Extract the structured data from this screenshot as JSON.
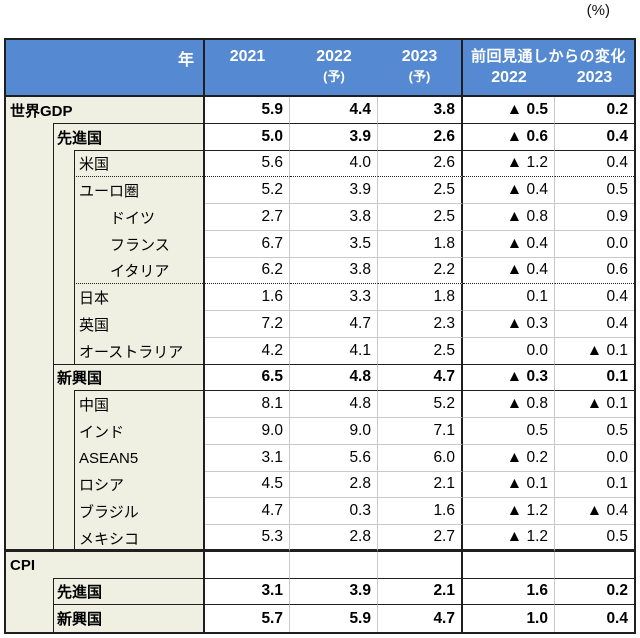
{
  "page": {
    "unit_label": "(%)"
  },
  "header": {
    "year_label": "年",
    "cols": [
      "2021",
      "2022",
      "2023"
    ],
    "forecast_suffix": "(予)",
    "change_group_label": "前回見通しからの変化",
    "change_cols": [
      "2022",
      "2023"
    ]
  },
  "colors": {
    "header_bg": "#5589D1",
    "header_text": "#FFFFFF",
    "label_bg": "#EFF0E2",
    "dark_line": "#1F1F1F",
    "gray_line": "#C9C9C9"
  },
  "negative_marker": "▲",
  "chart_data": {
    "type": "table",
    "unit": "%",
    "title": "",
    "columns": [
      "年",
      "2021",
      "2022 (予)",
      "2023 (予)",
      "前回見通しからの変化 2022",
      "前回見通しからの変化 2023"
    ],
    "rows": [
      {
        "label": "世界GDP",
        "level": 0,
        "bold": true,
        "sep": "dark",
        "values": [
          "5.9",
          "4.4",
          "3.8",
          "▲ 0.5",
          "0.2"
        ]
      },
      {
        "label": "先進国",
        "level": 1,
        "bold": true,
        "sep": "dark",
        "values": [
          "5.0",
          "3.9",
          "2.6",
          "▲ 0.6",
          "0.4"
        ]
      },
      {
        "label": "米国",
        "level": 2,
        "bold": false,
        "sep": "dotted",
        "values": [
          "5.6",
          "4.0",
          "2.6",
          "▲ 1.2",
          "0.4"
        ]
      },
      {
        "label": "ユーロ圏",
        "level": 2,
        "bold": false,
        "sep": "gray",
        "values": [
          "5.2",
          "3.9",
          "2.5",
          "▲ 0.4",
          "0.5"
        ]
      },
      {
        "label": "ドイツ",
        "level": 3,
        "bold": false,
        "sep": "gray",
        "values": [
          "2.7",
          "3.8",
          "2.5",
          "▲ 0.8",
          "0.9"
        ]
      },
      {
        "label": "フランス",
        "level": 3,
        "bold": false,
        "sep": "gray",
        "values": [
          "6.7",
          "3.5",
          "1.8",
          "▲ 0.4",
          "0.0"
        ]
      },
      {
        "label": "イタリア",
        "level": 3,
        "bold": false,
        "sep": "dotted",
        "values": [
          "6.2",
          "3.8",
          "2.2",
          "▲ 0.4",
          "0.6"
        ]
      },
      {
        "label": "日本",
        "level": 2,
        "bold": false,
        "sep": "gray",
        "values": [
          "1.6",
          "3.3",
          "1.8",
          "0.1",
          "0.4"
        ]
      },
      {
        "label": "英国",
        "level": 2,
        "bold": false,
        "sep": "gray",
        "values": [
          "7.2",
          "4.7",
          "2.3",
          "▲ 0.3",
          "0.4"
        ]
      },
      {
        "label": "オーストラリア",
        "level": 2,
        "bold": false,
        "sep": "dark",
        "values": [
          "4.2",
          "4.1",
          "2.5",
          "0.0",
          "▲ 0.1"
        ]
      },
      {
        "label": "新興国",
        "level": 1,
        "bold": true,
        "sep": "dark",
        "values": [
          "6.5",
          "4.8",
          "4.7",
          "▲ 0.3",
          "0.1"
        ]
      },
      {
        "label": "中国",
        "level": 2,
        "bold": false,
        "sep": "gray",
        "values": [
          "8.1",
          "4.8",
          "5.2",
          "▲ 0.8",
          "▲ 0.1"
        ]
      },
      {
        "label": "インド",
        "level": 2,
        "bold": false,
        "sep": "gray",
        "values": [
          "9.0",
          "9.0",
          "7.1",
          "0.5",
          "0.5"
        ]
      },
      {
        "label": "ASEAN5",
        "level": 2,
        "bold": false,
        "sep": "gray",
        "values": [
          "3.1",
          "5.6",
          "6.0",
          "▲ 0.2",
          "0.0"
        ]
      },
      {
        "label": "ロシア",
        "level": 2,
        "bold": false,
        "sep": "gray",
        "values": [
          "4.5",
          "2.8",
          "2.1",
          "▲ 0.1",
          "0.1"
        ]
      },
      {
        "label": "ブラジル",
        "level": 2,
        "bold": false,
        "sep": "gray",
        "values": [
          "4.7",
          "0.3",
          "1.6",
          "▲ 1.2",
          "▲ 0.4"
        ]
      },
      {
        "label": "メキシコ",
        "level": 2,
        "bold": false,
        "sep": "thick",
        "values": [
          "5.3",
          "2.8",
          "2.7",
          "▲ 1.2",
          "0.5"
        ]
      },
      {
        "label": "CPI",
        "level": 0,
        "bold": true,
        "sep": "dark",
        "values": [
          "",
          "",
          "",
          "",
          ""
        ]
      },
      {
        "label": "先進国",
        "level": 1,
        "bold": true,
        "sep": "dark",
        "values": [
          "3.1",
          "3.9",
          "2.1",
          "1.6",
          "0.2"
        ]
      },
      {
        "label": "新興国",
        "level": 1,
        "bold": true,
        "sep": "none",
        "values": [
          "5.7",
          "5.9",
          "4.7",
          "1.0",
          "0.4"
        ]
      }
    ]
  }
}
